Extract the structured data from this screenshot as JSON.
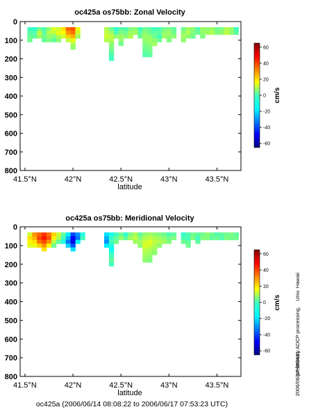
{
  "chart_data": [
    {
      "type": "heatmap",
      "title": "oc425a os75bb: Zonal Velocity",
      "xlabel": "latitude",
      "ylabel": "",
      "xlim": [
        41.45,
        43.75
      ],
      "ylim": [
        800,
        0
      ],
      "x_ticks": [
        41.5,
        42.0,
        42.5,
        43.0,
        43.5
      ],
      "x_tick_labels": [
        "41.5°N",
        "42°N",
        "42.5°N",
        "43°N",
        "43.5°N"
      ],
      "y_ticks": [
        0,
        100,
        200,
        300,
        400,
        500,
        600,
        700,
        800
      ],
      "y_tick_labels": [
        "0",
        "100",
        "200",
        "300",
        "400",
        "500",
        "600",
        "700",
        "800"
      ],
      "colorbar": {
        "label": "cm/s",
        "ticks": [
          60,
          40,
          20,
          0,
          -20,
          -40,
          -60
        ],
        "range": [
          -65,
          65
        ]
      },
      "depth_rows": [
        40,
        60,
        80,
        100,
        120,
        140,
        160,
        180,
        200
      ],
      "columns": [
        {
          "lat": 41.55,
          "max_depth": 100,
          "values": [
            -8,
            -5,
            -3,
            -2
          ]
        },
        {
          "lat": 41.6,
          "max_depth": 80,
          "values": [
            -10,
            -6,
            -4
          ]
        },
        {
          "lat": 41.65,
          "max_depth": 80,
          "values": [
            -2,
            8,
            4
          ]
        },
        {
          "lat": 41.7,
          "max_depth": 100,
          "values": [
            -6,
            -4,
            -2,
            -3
          ]
        },
        {
          "lat": 41.75,
          "max_depth": 100,
          "values": [
            2,
            6,
            3,
            0
          ]
        },
        {
          "lat": 41.8,
          "max_depth": 100,
          "values": [
            12,
            8,
            0,
            -4
          ]
        },
        {
          "lat": 41.85,
          "max_depth": 100,
          "values": [
            10,
            14,
            6,
            2
          ]
        },
        {
          "lat": 41.9,
          "max_depth": 80,
          "values": [
            20,
            16,
            10
          ]
        },
        {
          "lat": 41.95,
          "max_depth": 100,
          "values": [
            36,
            30,
            22,
            8
          ]
        },
        {
          "lat": 42.0,
          "max_depth": 140,
          "values": [
            38,
            34,
            26,
            14,
            6,
            2
          ]
        },
        {
          "lat": 42.05,
          "max_depth": 80,
          "values": [
            14,
            10,
            4
          ]
        },
        {
          "lat": 42.35,
          "max_depth": 100,
          "values": [
            6,
            8,
            10,
            6
          ]
        },
        {
          "lat": 42.4,
          "max_depth": 200,
          "values": [
            -2,
            4,
            8,
            6,
            2,
            0,
            -4,
            -6,
            -8
          ]
        },
        {
          "lat": 42.45,
          "max_depth": 80,
          "values": [
            -10,
            -6,
            2
          ]
        },
        {
          "lat": 42.5,
          "max_depth": 120,
          "values": [
            -4,
            0,
            4,
            2,
            -2
          ]
        },
        {
          "lat": 42.55,
          "max_depth": 80,
          "values": [
            -6,
            -2,
            2
          ]
        },
        {
          "lat": 42.6,
          "max_depth": 80,
          "values": [
            0,
            4,
            6
          ]
        },
        {
          "lat": 42.65,
          "max_depth": 60,
          "values": [
            2,
            4
          ]
        },
        {
          "lat": 42.7,
          "max_depth": 80,
          "values": [
            -8,
            -4,
            -2
          ]
        },
        {
          "lat": 42.75,
          "max_depth": 180,
          "values": [
            -2,
            2,
            4,
            2,
            0,
            -2,
            -4,
            -6
          ]
        },
        {
          "lat": 42.8,
          "max_depth": 180,
          "values": [
            -4,
            -2,
            2,
            4,
            2,
            0,
            -2,
            -4
          ]
        },
        {
          "lat": 42.85,
          "max_depth": 120,
          "values": [
            -8,
            -4,
            -2,
            2,
            4
          ]
        },
        {
          "lat": 42.9,
          "max_depth": 100,
          "values": [
            -6,
            -4,
            -8,
            -2
          ]
        },
        {
          "lat": 42.95,
          "max_depth": 80,
          "values": [
            -2,
            2,
            4
          ]
        },
        {
          "lat": 43.0,
          "max_depth": 100,
          "values": [
            0,
            4,
            2,
            0
          ]
        },
        {
          "lat": 43.05,
          "max_depth": 80,
          "values": [
            -4,
            -2,
            2
          ]
        },
        {
          "lat": 43.15,
          "max_depth": 100,
          "values": [
            -2,
            2,
            4,
            2
          ]
        },
        {
          "lat": 43.2,
          "max_depth": 80,
          "values": [
            4,
            6,
            2
          ]
        },
        {
          "lat": 43.25,
          "max_depth": 80,
          "values": [
            2,
            0,
            -2
          ]
        },
        {
          "lat": 43.3,
          "max_depth": 60,
          "values": [
            -6,
            -2
          ]
        },
        {
          "lat": 43.35,
          "max_depth": 80,
          "values": [
            4,
            2,
            0
          ]
        },
        {
          "lat": 43.4,
          "max_depth": 60,
          "values": [
            2,
            4
          ]
        },
        {
          "lat": 43.45,
          "max_depth": 60,
          "values": [
            4,
            6
          ]
        },
        {
          "lat": 43.5,
          "max_depth": 60,
          "values": [
            -2,
            0
          ]
        },
        {
          "lat": 43.55,
          "max_depth": 60,
          "values": [
            0,
            2
          ]
        },
        {
          "lat": 43.6,
          "max_depth": 60,
          "values": [
            6,
            8
          ]
        },
        {
          "lat": 43.65,
          "max_depth": 60,
          "values": [
            4,
            2
          ]
        },
        {
          "lat": 43.7,
          "max_depth": 60,
          "values": [
            -8,
            -4
          ]
        }
      ]
    },
    {
      "type": "heatmap",
      "title": "oc425a os75bb: Meridional Velocity",
      "xlabel": "latitude",
      "ylabel": "",
      "xlim": [
        41.45,
        43.75
      ],
      "ylim": [
        800,
        0
      ],
      "x_ticks": [
        41.5,
        42.0,
        42.5,
        43.0,
        43.5
      ],
      "x_tick_labels": [
        "41.5°N",
        "42°N",
        "42.5°N",
        "43°N",
        "43.5°N"
      ],
      "y_ticks": [
        0,
        100,
        200,
        300,
        400,
        500,
        600,
        700,
        800
      ],
      "y_tick_labels": [
        "0",
        "100",
        "200",
        "300",
        "400",
        "500",
        "600",
        "700",
        "800"
      ],
      "colorbar": {
        "label": "cm/s",
        "ticks": [
          60,
          40,
          20,
          0,
          -20,
          -40,
          -60
        ],
        "range": [
          -65,
          65
        ]
      },
      "depth_rows": [
        40,
        60,
        80,
        100,
        120,
        140,
        160,
        180,
        200
      ],
      "columns": [
        {
          "lat": 41.55,
          "max_depth": 100,
          "values": [
            10,
            20,
            18,
            12
          ]
        },
        {
          "lat": 41.6,
          "max_depth": 100,
          "values": [
            30,
            26,
            20,
            14
          ]
        },
        {
          "lat": 41.65,
          "max_depth": 100,
          "values": [
            36,
            40,
            34,
            22
          ]
        },
        {
          "lat": 41.7,
          "max_depth": 120,
          "values": [
            42,
            46,
            40,
            30,
            20
          ]
        },
        {
          "lat": 41.75,
          "max_depth": 100,
          "values": [
            34,
            38,
            30,
            16
          ]
        },
        {
          "lat": 41.8,
          "max_depth": 100,
          "values": [
            22,
            18,
            8,
            -2
          ]
        },
        {
          "lat": 41.85,
          "max_depth": 80,
          "values": [
            10,
            6,
            -4
          ]
        },
        {
          "lat": 41.9,
          "max_depth": 80,
          "values": [
            -4,
            -8,
            -12
          ]
        },
        {
          "lat": 41.95,
          "max_depth": 100,
          "values": [
            -18,
            -26,
            -34,
            -22
          ]
        },
        {
          "lat": 42.0,
          "max_depth": 120,
          "values": [
            -40,
            -48,
            -52,
            -38,
            -20
          ]
        },
        {
          "lat": 42.05,
          "max_depth": 80,
          "values": [
            -30,
            -34,
            -18
          ]
        },
        {
          "lat": 42.1,
          "max_depth": 60,
          "values": [
            -12,
            -8
          ]
        },
        {
          "lat": 42.35,
          "max_depth": 100,
          "values": [
            -20,
            -26,
            -30,
            -18
          ]
        },
        {
          "lat": 42.4,
          "max_depth": 200,
          "values": [
            -14,
            -10,
            -8,
            -12,
            -16,
            -10,
            -6,
            -4,
            -8
          ]
        },
        {
          "lat": 42.45,
          "max_depth": 80,
          "values": [
            -8,
            -4,
            -2
          ]
        },
        {
          "lat": 42.5,
          "max_depth": 60,
          "values": [
            -2,
            2
          ]
        },
        {
          "lat": 42.55,
          "max_depth": 60,
          "values": [
            -10,
            -4
          ]
        },
        {
          "lat": 42.6,
          "max_depth": 60,
          "values": [
            0,
            4
          ]
        },
        {
          "lat": 42.65,
          "max_depth": 80,
          "values": [
            6,
            8,
            4
          ]
        },
        {
          "lat": 42.7,
          "max_depth": 100,
          "values": [
            -4,
            0,
            4,
            2
          ]
        },
        {
          "lat": 42.75,
          "max_depth": 180,
          "values": [
            2,
            6,
            10,
            12,
            8,
            6,
            4,
            2
          ]
        },
        {
          "lat": 42.8,
          "max_depth": 180,
          "values": [
            4,
            8,
            12,
            10,
            6,
            4,
            2,
            0
          ]
        },
        {
          "lat": 42.85,
          "max_depth": 140,
          "values": [
            2,
            6,
            8,
            6,
            4,
            2
          ]
        },
        {
          "lat": 42.9,
          "max_depth": 100,
          "values": [
            0,
            4,
            6,
            2
          ]
        },
        {
          "lat": 42.95,
          "max_depth": 80,
          "values": [
            -2,
            2,
            4
          ]
        },
        {
          "lat": 43.0,
          "max_depth": 80,
          "values": [
            -6,
            -2,
            0
          ]
        },
        {
          "lat": 43.05,
          "max_depth": 60,
          "values": [
            -4,
            0
          ]
        },
        {
          "lat": 43.15,
          "max_depth": 80,
          "values": [
            -10,
            -6,
            -2
          ]
        },
        {
          "lat": 43.2,
          "max_depth": 100,
          "values": [
            -6,
            -8,
            -4,
            -2
          ]
        },
        {
          "lat": 43.25,
          "max_depth": 60,
          "values": [
            -2,
            0
          ]
        },
        {
          "lat": 43.3,
          "max_depth": 80,
          "values": [
            -4,
            -8,
            -4
          ]
        },
        {
          "lat": 43.35,
          "max_depth": 60,
          "values": [
            -2,
            0
          ]
        },
        {
          "lat": 43.4,
          "max_depth": 60,
          "values": [
            2,
            0
          ]
        },
        {
          "lat": 43.45,
          "max_depth": 60,
          "values": [
            -2,
            -4
          ]
        },
        {
          "lat": 43.5,
          "max_depth": 60,
          "values": [
            -6,
            -2
          ]
        },
        {
          "lat": 43.55,
          "max_depth": 60,
          "values": [
            -4,
            -6
          ]
        },
        {
          "lat": 43.6,
          "max_depth": 60,
          "values": [
            -2,
            0
          ]
        },
        {
          "lat": 43.65,
          "max_depth": 60,
          "values": [
            0,
            -2
          ]
        },
        {
          "lat": 43.7,
          "max_depth": 60,
          "values": [
            -4,
            -2
          ]
        }
      ]
    }
  ],
  "footer": {
    "caption": "oc425a (2006/06/14 08:08:22 to 2006/06/17 07:53:23 UTC)",
    "side_note_main": "preliminary ADCP processing,",
    "side_note_affil": "Univ. Hawaii",
    "side_stamp": "2006/06/17 080431"
  }
}
